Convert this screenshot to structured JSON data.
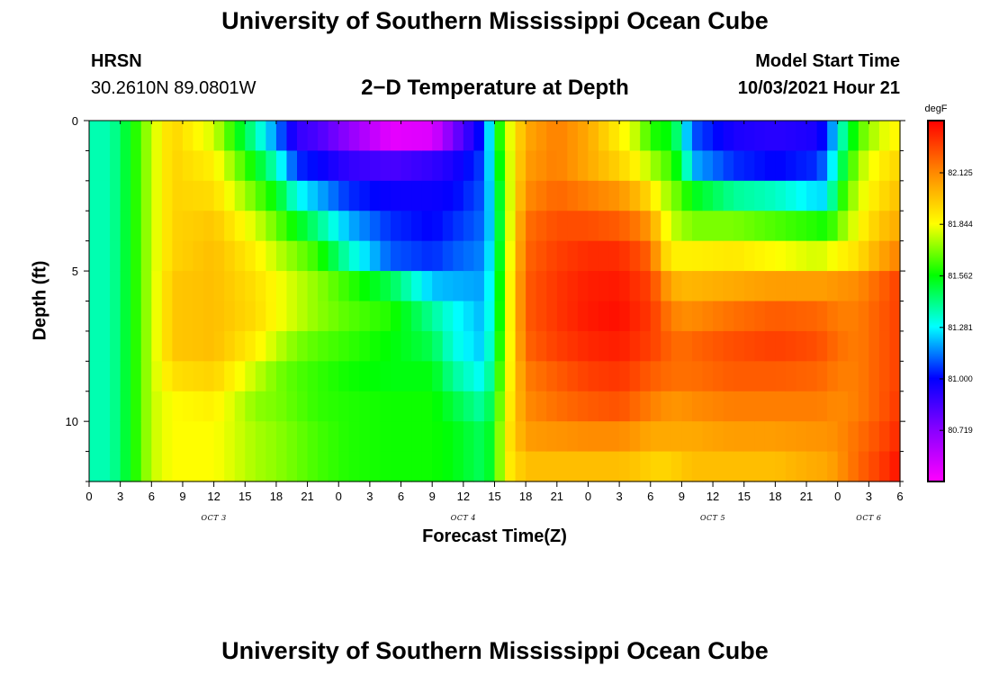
{
  "header": {
    "title": "University of Southern Mississippi Ocean Cube",
    "station": "HRSN",
    "coordinates": "30.2610N  89.0801W",
    "subtitle": "2−D Temperature at Depth",
    "model_start_label": "Model Start Time",
    "model_start_value": "10/03/2021 Hour 21"
  },
  "footer": {
    "title": "University of Southern Mississippi Ocean Cube"
  },
  "chart_data": {
    "type": "heatmap",
    "title": "2−D Temperature at Depth",
    "xlabel": "Forecast Time(Z)",
    "ylabel": "Depth (ft)",
    "x_hours": [
      0,
      3,
      6,
      9,
      12,
      15,
      18,
      21,
      24,
      27,
      30,
      33,
      36,
      39,
      42,
      45,
      48,
      51,
      54,
      57,
      60,
      63,
      66,
      69,
      72,
      75,
      78
    ],
    "x_tick_labels": [
      "0",
      "3",
      "6",
      "9",
      "12",
      "15",
      "18",
      "21",
      "0",
      "3",
      "6",
      "9",
      "12",
      "15",
      "18",
      "21",
      "0",
      "3",
      "6",
      "9",
      "12",
      "15",
      "18",
      "21",
      "0",
      "3",
      "6"
    ],
    "day_labels": [
      {
        "label": "OCT 3",
        "hour": 12
      },
      {
        "label": "OCT 4",
        "hour": 36
      },
      {
        "label": "OCT 5",
        "hour": 60
      },
      {
        "label": "OCT 6",
        "hour": 75
      }
    ],
    "xlim": [
      0,
      78
    ],
    "y_ticks": [
      0,
      5,
      10
    ],
    "ylim": [
      0,
      12
    ],
    "y_inverted": true,
    "depths": [
      0.5,
      1.5,
      2.5,
      3.5,
      4.5,
      5.5,
      6.5,
      7.5,
      8.5,
      9.5,
      10.5,
      11.5
    ],
    "colorbar": {
      "unit": "degF",
      "range": [
        80.44,
        82.41
      ],
      "tick_values": [
        80.719,
        81.0,
        81.281,
        81.562,
        81.844,
        82.125
      ],
      "tick_labels": [
        "80.719",
        "81.000",
        "81.281",
        "81.562",
        "81.844",
        "82.125"
      ],
      "colormap": [
        "#ff00ff",
        "#8800ff",
        "#0000ff",
        "#00ffff",
        "#00ff00",
        "#ffff00",
        "#ff8800",
        "#ff0000"
      ]
    },
    "temperature_keyframes": [
      {
        "hour": 0,
        "values": [
          81.37,
          81.37,
          81.37,
          81.37,
          81.37,
          81.37,
          81.37,
          81.37,
          81.37,
          81.37,
          81.37,
          81.37
        ]
      },
      {
        "hour": 2,
        "values": [
          81.37,
          81.37,
          81.37,
          81.37,
          81.37,
          81.37,
          81.37,
          81.37,
          81.37,
          81.37,
          81.37,
          81.37
        ]
      },
      {
        "hour": 4,
        "values": [
          81.55,
          81.55,
          81.55,
          81.55,
          81.55,
          81.55,
          81.55,
          81.55,
          81.55,
          81.55,
          81.55,
          81.55
        ]
      },
      {
        "hour": 6,
        "values": [
          81.78,
          81.78,
          81.78,
          81.78,
          81.78,
          81.78,
          81.78,
          81.78,
          81.78,
          81.78,
          81.78,
          81.78
        ]
      },
      {
        "hour": 8,
        "values": [
          81.95,
          81.95,
          81.95,
          81.95,
          81.95,
          81.98,
          81.98,
          81.98,
          81.92,
          81.85,
          81.85,
          81.85
        ]
      },
      {
        "hour": 12,
        "values": [
          81.8,
          81.88,
          81.93,
          81.98,
          82.0,
          82.0,
          82.0,
          82.0,
          81.95,
          81.88,
          81.85,
          81.85
        ]
      },
      {
        "hour": 16,
        "values": [
          81.38,
          81.55,
          81.68,
          81.8,
          81.88,
          81.92,
          81.93,
          81.88,
          81.78,
          81.72,
          81.75,
          81.75
        ]
      },
      {
        "hour": 18,
        "values": [
          81.15,
          81.35,
          81.55,
          81.68,
          81.78,
          81.85,
          81.85,
          81.78,
          81.7,
          81.7,
          81.72,
          81.72
        ]
      },
      {
        "hour": 20,
        "values": [
          80.9,
          81.05,
          81.3,
          81.55,
          81.7,
          81.78,
          81.78,
          81.7,
          81.65,
          81.66,
          81.68,
          81.68
        ]
      },
      {
        "hour": 22,
        "values": [
          80.85,
          81.0,
          81.2,
          81.42,
          81.62,
          81.72,
          81.72,
          81.66,
          81.62,
          81.62,
          81.64,
          81.64
        ]
      },
      {
        "hour": 25,
        "values": [
          80.7,
          80.9,
          81.05,
          81.2,
          81.35,
          81.62,
          81.66,
          81.62,
          81.58,
          81.6,
          81.6,
          81.6
        ]
      },
      {
        "hour": 29,
        "values": [
          80.5,
          80.85,
          80.98,
          81.05,
          81.1,
          81.48,
          81.6,
          81.56,
          81.55,
          81.58,
          81.58,
          81.58
        ]
      },
      {
        "hour": 33,
        "values": [
          80.52,
          80.9,
          80.98,
          81.0,
          81.05,
          81.22,
          81.4,
          81.48,
          81.55,
          81.58,
          81.58,
          81.58
        ]
      },
      {
        "hour": 35,
        "values": [
          80.75,
          80.95,
          81.0,
          81.05,
          81.1,
          81.2,
          81.3,
          81.32,
          81.4,
          81.5,
          81.55,
          81.55
        ]
      },
      {
        "hour": 38,
        "values": [
          81.05,
          81.08,
          81.1,
          81.12,
          81.15,
          81.18,
          81.2,
          81.22,
          81.28,
          81.38,
          81.46,
          81.46
        ]
      },
      {
        "hour": 39,
        "values": [
          81.45,
          81.4,
          81.35,
          81.32,
          81.35,
          81.38,
          81.4,
          81.45,
          81.5,
          81.55,
          81.58,
          81.58
        ]
      },
      {
        "hour": 40,
        "values": [
          81.75,
          81.72,
          81.7,
          81.7,
          81.72,
          81.75,
          81.75,
          81.75,
          81.78,
          81.82,
          81.86,
          81.86
        ]
      },
      {
        "hour": 42,
        "values": [
          82.05,
          82.08,
          82.12,
          82.18,
          82.2,
          82.22,
          82.22,
          82.2,
          82.15,
          82.12,
          82.08,
          82.0
        ]
      },
      {
        "hour": 45,
        "values": [
          82.15,
          82.15,
          82.2,
          82.25,
          82.28,
          82.3,
          82.3,
          82.28,
          82.22,
          82.18,
          82.1,
          82.0
        ]
      },
      {
        "hour": 48,
        "values": [
          82.05,
          82.05,
          82.15,
          82.25,
          82.32,
          82.35,
          82.36,
          82.33,
          82.28,
          82.22,
          82.12,
          82.0
        ]
      },
      {
        "hour": 51,
        "values": [
          81.88,
          81.95,
          82.1,
          82.22,
          82.32,
          82.36,
          82.38,
          82.35,
          82.3,
          82.24,
          82.12,
          82.0
        ]
      },
      {
        "hour": 53,
        "values": [
          81.75,
          81.85,
          82.0,
          82.15,
          82.25,
          82.3,
          82.32,
          82.3,
          82.25,
          82.18,
          82.08,
          81.98
        ]
      },
      {
        "hour": 54,
        "values": [
          81.6,
          81.75,
          81.92,
          82.08,
          82.2,
          82.28,
          82.3,
          82.28,
          82.22,
          82.15,
          82.05,
          81.95
        ]
      },
      {
        "hour": 55,
        "values": [
          81.58,
          81.7,
          81.8,
          81.92,
          82.0,
          82.15,
          82.22,
          82.24,
          82.2,
          82.12,
          82.05,
          81.95
        ]
      },
      {
        "hour": 56,
        "values": [
          81.55,
          81.62,
          81.72,
          81.78,
          81.88,
          82.05,
          82.15,
          82.2,
          82.18,
          82.1,
          82.05,
          81.95
        ]
      },
      {
        "hour": 57,
        "values": [
          81.35,
          81.5,
          81.65,
          81.75,
          81.88,
          82.02,
          82.12,
          82.18,
          82.18,
          82.1,
          82.05,
          81.98
        ]
      },
      {
        "hour": 58,
        "values": [
          81.1,
          81.2,
          81.55,
          81.7,
          81.88,
          82.02,
          82.12,
          82.2,
          82.18,
          82.12,
          82.05,
          82.0
        ]
      },
      {
        "hour": 62,
        "values": [
          80.95,
          81.05,
          81.4,
          81.7,
          81.9,
          82.05,
          82.18,
          82.25,
          82.22,
          82.15,
          82.08,
          82.0
        ]
      },
      {
        "hour": 66,
        "values": [
          80.92,
          81.0,
          81.35,
          81.65,
          81.85,
          82.08,
          82.22,
          82.28,
          82.22,
          82.15,
          82.08,
          82.0
        ]
      },
      {
        "hour": 70,
        "values": [
          80.95,
          81.05,
          81.25,
          81.6,
          81.8,
          82.08,
          82.2,
          82.25,
          82.2,
          82.15,
          82.1,
          82.05
        ]
      },
      {
        "hour": 71,
        "values": [
          81.05,
          81.15,
          81.25,
          81.58,
          81.82,
          82.08,
          82.18,
          82.22,
          82.18,
          82.14,
          82.1,
          82.05
        ]
      },
      {
        "hour": 72,
        "values": [
          81.3,
          81.4,
          81.55,
          81.68,
          81.86,
          82.1,
          82.15,
          82.18,
          82.15,
          82.12,
          82.12,
          82.1
        ]
      },
      {
        "hour": 74,
        "values": [
          81.65,
          81.75,
          81.8,
          81.85,
          81.92,
          82.12,
          82.15,
          82.15,
          82.15,
          82.15,
          82.18,
          82.2
        ]
      },
      {
        "hour": 76,
        "values": [
          81.8,
          81.88,
          81.92,
          81.98,
          82.05,
          82.2,
          82.22,
          82.22,
          82.22,
          82.22,
          82.25,
          82.28
        ]
      },
      {
        "hour": 78,
        "values": [
          81.88,
          81.95,
          82.0,
          82.05,
          82.15,
          82.28,
          82.28,
          82.28,
          82.28,
          82.3,
          82.33,
          82.38
        ]
      }
    ]
  }
}
